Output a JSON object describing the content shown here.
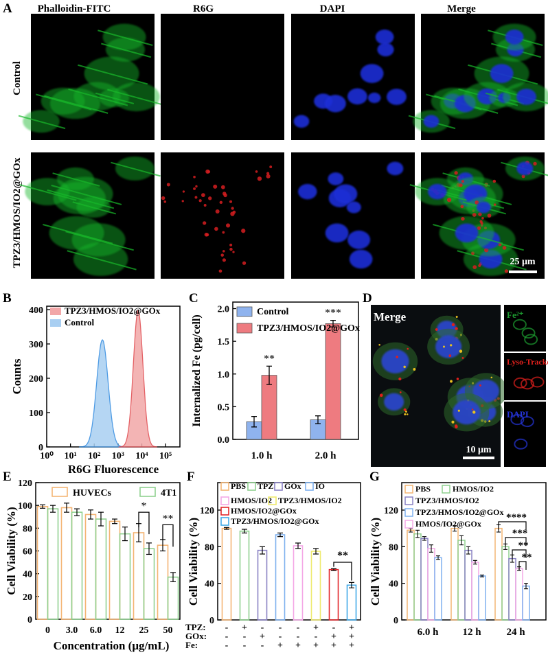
{
  "panelA": {
    "letter": "A",
    "columns": [
      "Phalloidin-FITC",
      "R6G",
      "DAPI",
      "Merge"
    ],
    "rows": [
      "Control",
      "TPZ3/HMOS/IO2@GOx"
    ],
    "scalebar": "25 μm",
    "channel_colors": {
      "phalloidin": "#19b82a",
      "r6g": "#d51d20",
      "dapi": "#1b2fd6"
    }
  },
  "panelB": {
    "letter": "B",
    "chart_data": {
      "type": "area",
      "xlabel": "R6G Fluorescence",
      "ylabel": "Counts",
      "x_scale": "log",
      "xlim": [
        1,
        400000
      ],
      "ylim": [
        0,
        410
      ],
      "yticks": [
        0,
        100,
        200,
        300,
        400
      ],
      "xtick_labels": [
        "10⁰",
        "10¹",
        "10²",
        "10³",
        "10⁴",
        "10⁵"
      ],
      "series": [
        {
          "name": "TPZ3/HMOS/IO2@GOx",
          "color": "#f2a7a8",
          "edge": "#e0474c",
          "peak_x": 7000,
          "peak_y": 398,
          "width_log": 0.2
        },
        {
          "name": "Control",
          "color": "#a9cff2",
          "edge": "#2f8ae0",
          "peak_x": 220,
          "peak_y": 312,
          "width_log": 0.24
        }
      ]
    }
  },
  "panelC": {
    "letter": "C",
    "chart_data": {
      "type": "bar",
      "categories": [
        "1.0 h",
        "2.0 h"
      ],
      "ylabel": "Internalized Fe (pg/cell)",
      "ylim": [
        0,
        2.1
      ],
      "yticks": [
        "0.0",
        "0.5",
        "1.0",
        "1.5",
        "2.0"
      ],
      "series": [
        {
          "name": "Control",
          "values": [
            0.27,
            0.3
          ],
          "errors": [
            0.08,
            0.06
          ],
          "color": "#8fb3ee"
        },
        {
          "name": "TPZ3/HMOS/IO2@GOx",
          "values": [
            0.98,
            1.77
          ],
          "errors": [
            0.14,
            0.05
          ],
          "color": "#ee7b80"
        }
      ],
      "significance": [
        "**",
        "***"
      ]
    }
  },
  "panelD": {
    "letter": "D",
    "main_label": "Merge",
    "scalebar": "10 μm",
    "side_labels": [
      "Fe²⁺",
      "Lyso-Tracker",
      "DAPI"
    ],
    "side_colors": [
      "#1d9c30",
      "#e0201c",
      "#2534d8"
    ]
  },
  "panelE": {
    "letter": "E",
    "chart_data": {
      "type": "bar",
      "categories": [
        "0",
        "3.0",
        "6.0",
        "12",
        "25",
        "50"
      ],
      "xlabel": "Concentration (μg/mL)",
      "ylabel": "Cell Viability (%)",
      "ylim": [
        0,
        120
      ],
      "yticks": [
        0,
        20,
        40,
        60,
        80,
        100,
        120
      ],
      "series": [
        {
          "name": "HUVECs",
          "values": [
            99,
            98,
            92,
            86,
            76,
            65
          ],
          "errors": [
            1.5,
            4,
            4,
            2,
            8,
            5
          ],
          "color": "#f4b574"
        },
        {
          "name": "4T1",
          "values": [
            97,
            94,
            88,
            75,
            62,
            37
          ],
          "errors": [
            3,
            3,
            6,
            6,
            5,
            4
          ],
          "color": "#8fd08f"
        }
      ],
      "significance": [
        {
          "between": "25",
          "label": "*"
        },
        {
          "between": "50",
          "label": "**"
        }
      ]
    }
  },
  "panelF": {
    "letter": "F",
    "chart_data": {
      "type": "bar",
      "ylabel": "Cell Viability (%)",
      "ylim": [
        0,
        150
      ],
      "yticks": [
        0,
        40,
        80,
        120
      ],
      "series": [
        {
          "name": "PBS",
          "value": 100,
          "error": 1,
          "color": "#f4b574"
        },
        {
          "name": "TPZ",
          "value": 97,
          "error": 2,
          "color": "#8fd08f"
        },
        {
          "name": "GOx",
          "value": 76,
          "error": 4,
          "color": "#8a82c4"
        },
        {
          "name": "IO",
          "value": 93,
          "error": 2,
          "color": "#7fb1ef"
        },
        {
          "name": "HMOS/IO2",
          "value": 81,
          "error": 3,
          "color": "#f4a8e6"
        },
        {
          "name": "TPZ3/HMOS/IO2",
          "value": 75,
          "error": 3,
          "color": "#eeea6c"
        },
        {
          "name": "HMOS/IO2@GOx",
          "value": 55,
          "error": 1,
          "color": "#e3262b"
        },
        {
          "name": "TPZ3/HMOS/IO2@GOx",
          "value": 38,
          "error": 3,
          "color": "#3fa8e8"
        }
      ],
      "significance": "**",
      "treatment_rows": [
        {
          "label": "TPZ:",
          "signs": [
            "-",
            "+",
            "-",
            "-",
            "-",
            "+",
            "-",
            "+"
          ]
        },
        {
          "label": "GOx:",
          "signs": [
            "-",
            "-",
            "+",
            "-",
            "-",
            "-",
            "+",
            "+"
          ]
        },
        {
          "label": "Fe:",
          "signs": [
            "-",
            "-",
            "-",
            "+",
            "+",
            "+",
            "+",
            "+"
          ]
        }
      ]
    }
  },
  "panelG": {
    "letter": "G",
    "chart_data": {
      "type": "bar",
      "categories": [
        "6.0 h",
        "12 h",
        "24 h"
      ],
      "ylabel": "Cell Viability (%)",
      "ylim": [
        0,
        150
      ],
      "yticks": [
        0,
        40,
        80,
        120
      ],
      "series": [
        {
          "name": "PBS",
          "values": [
            98,
            100,
            100
          ],
          "errors": [
            2,
            3,
            4
          ],
          "color": "#f4b574"
        },
        {
          "name": "HMOS/IO2",
          "values": [
            94,
            87,
            80
          ],
          "errors": [
            4,
            5,
            3
          ],
          "color": "#8fd08f"
        },
        {
          "name": "TPZ3/HMOS/IO2",
          "values": [
            89,
            76,
            67
          ],
          "errors": [
            2,
            4,
            4
          ],
          "color": "#8a82c4"
        },
        {
          "name": "HMOS/IO2@GOx",
          "values": [
            78,
            63,
            56
          ],
          "errors": [
            4,
            2,
            2
          ],
          "color": "#f4a8e6"
        },
        {
          "name": "TPZ3/HMOS/IO2@GOx",
          "values": [
            68,
            48,
            37
          ],
          "errors": [
            2,
            1,
            3
          ],
          "color": "#7fb1ef"
        }
      ],
      "significance": [
        "****",
        "***",
        "**",
        "**"
      ]
    }
  }
}
